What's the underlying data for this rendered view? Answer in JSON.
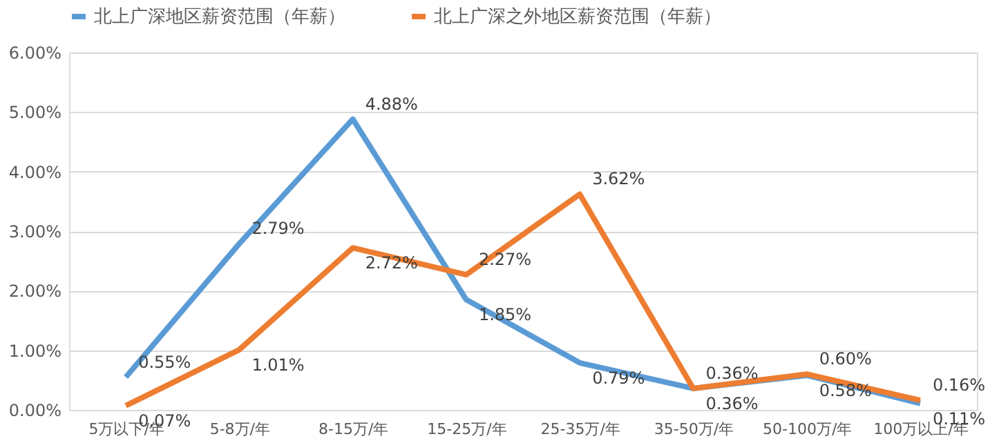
{
  "chart_data": {
    "type": "line",
    "categories": [
      "5万以下/年",
      "5-8万/年",
      "8-15万/年",
      "15-25万/年",
      "25-35万/年",
      "35-50万/年",
      "50-100万/年",
      "100万以上/年"
    ],
    "series": [
      {
        "name": "北上广深地区薪资范围（年薪）",
        "color": "#5b9bd5",
        "values": [
          0.55,
          2.79,
          4.88,
          1.85,
          0.79,
          0.36,
          0.58,
          0.11
        ],
        "value_labels": [
          "0.55%",
          "2.79%",
          "4.88%",
          "1.85%",
          "0.79%",
          "0.36%",
          "0.58%",
          "0.11%"
        ]
      },
      {
        "name": "北上广深之外地区薪资范围（年薪）",
        "color": "#ed7d31",
        "values": [
          0.07,
          1.01,
          2.72,
          2.27,
          3.62,
          0.36,
          0.6,
          0.16
        ],
        "value_labels": [
          "0.07%",
          "1.01%",
          "2.72%",
          "2.27%",
          "3.62%",
          "0.36%",
          "0.60%",
          "0.16%"
        ]
      }
    ],
    "ylim": [
      0,
      6
    ],
    "yticks": [
      {
        "value": 0,
        "label": "0.00%"
      },
      {
        "value": 1,
        "label": "1.00%"
      },
      {
        "value": 2,
        "label": "2.00%"
      },
      {
        "value": 3,
        "label": "3.00%"
      },
      {
        "value": 4,
        "label": "4.00%"
      },
      {
        "value": 5,
        "label": "5.00%"
      },
      {
        "value": 6,
        "label": "6.00%"
      }
    ],
    "grid": "y",
    "legend": "top",
    "marker": "none",
    "line_style": "solid"
  }
}
